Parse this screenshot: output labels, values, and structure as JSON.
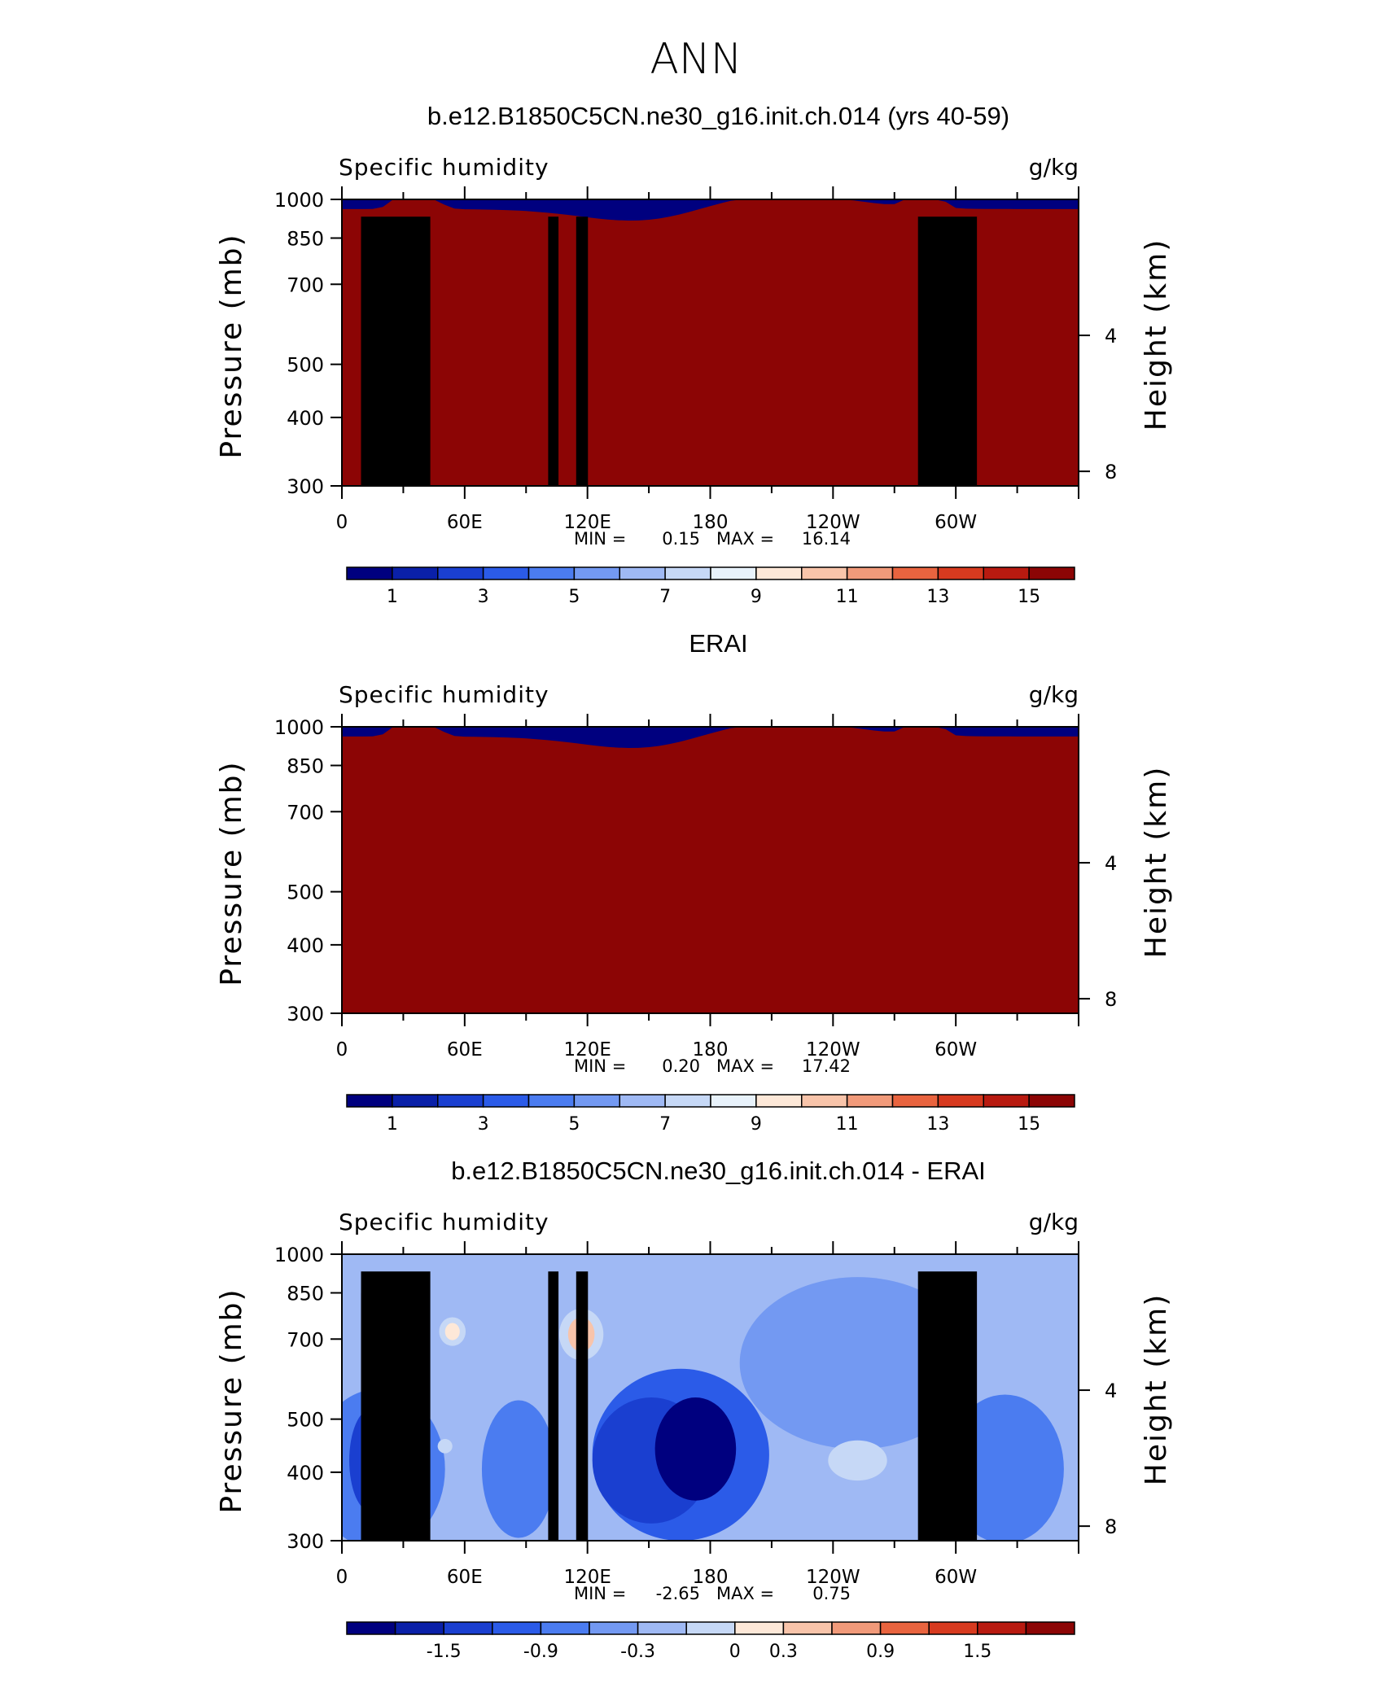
{
  "figure_title": "ANN",
  "chart_data": [
    {
      "type": "heatmap",
      "title": "b.e12.B1850C5CN.ne30_g16.init.ch.014 (yrs 40-59)",
      "variable": "Specific humidity",
      "units": "g/kg",
      "ylabel": "Pressure (mb)",
      "y2label": "Height (km)",
      "x_ticks": [
        "0",
        "60E",
        "120E",
        "180",
        "120W",
        "60W"
      ],
      "y_ticks": [
        "300",
        "400",
        "500",
        "700",
        "850",
        "1000"
      ],
      "y2_ticks": [
        "8",
        "4"
      ],
      "ylim": [
        1000,
        300
      ],
      "y_scale": "log",
      "min_label": "MIN =",
      "min_value": "0.15",
      "max_label": "MAX =",
      "max_value": "16.14",
      "colorbar_labels": [
        "1",
        "3",
        "5",
        "7",
        "9",
        "11",
        "13",
        "15"
      ],
      "colorbar_colors": [
        "#00007f",
        "#0a20a8",
        "#1a3fd0",
        "#2b5be8",
        "#4b7cf0",
        "#7399f2",
        "#9fb9f4",
        "#c6d8f6",
        "#e8f2fb",
        "#fde8d8",
        "#f8c4aa",
        "#f19a7a",
        "#e9643f",
        "#d73a1f",
        "#b81a10",
        "#8c0505"
      ]
    },
    {
      "type": "heatmap",
      "title": "ERAI",
      "variable": "Specific humidity",
      "units": "g/kg",
      "ylabel": "Pressure (mb)",
      "y2label": "Height (km)",
      "x_ticks": [
        "0",
        "60E",
        "120E",
        "180",
        "120W",
        "60W"
      ],
      "y_ticks": [
        "300",
        "400",
        "500",
        "700",
        "850",
        "1000"
      ],
      "y2_ticks": [
        "8",
        "4"
      ],
      "ylim": [
        1000,
        300
      ],
      "y_scale": "log",
      "min_label": "MIN =",
      "min_value": "0.20",
      "max_label": "MAX =",
      "max_value": "17.42",
      "colorbar_labels": [
        "1",
        "3",
        "5",
        "7",
        "9",
        "11",
        "13",
        "15"
      ],
      "colorbar_colors": [
        "#00007f",
        "#0a20a8",
        "#1a3fd0",
        "#2b5be8",
        "#4b7cf0",
        "#7399f2",
        "#9fb9f4",
        "#c6d8f6",
        "#e8f2fb",
        "#fde8d8",
        "#f8c4aa",
        "#f19a7a",
        "#e9643f",
        "#d73a1f",
        "#b81a10",
        "#8c0505"
      ]
    },
    {
      "type": "heatmap",
      "title": "b.e12.B1850C5CN.ne30_g16.init.ch.014 - ERAI",
      "variable": "Specific humidity",
      "units": "g/kg",
      "ylabel": "Pressure (mb)",
      "y2label": "Height (km)",
      "x_ticks": [
        "0",
        "60E",
        "120E",
        "180",
        "120W",
        "60W"
      ],
      "y_ticks": [
        "300",
        "400",
        "500",
        "700",
        "850",
        "1000"
      ],
      "y2_ticks": [
        "8",
        "4"
      ],
      "ylim": [
        1000,
        300
      ],
      "y_scale": "log",
      "min_label": "MIN =",
      "min_value": "-2.65",
      "max_label": "MAX =",
      "max_value": "0.75",
      "colorbar_labels": [
        "-1.5",
        "-0.9",
        "-0.3",
        "0",
        "0.3",
        "0.9",
        "1.5"
      ],
      "colorbar_colors": [
        "#00007f",
        "#0a20a8",
        "#1a3fd0",
        "#2b5be8",
        "#4b7cf0",
        "#7399f2",
        "#9fb9f4",
        "#c6d8f6",
        "#fde8d8",
        "#f8c4aa",
        "#f19a7a",
        "#e9643f",
        "#d73a1f",
        "#b81a10",
        "#8c0505"
      ]
    }
  ]
}
